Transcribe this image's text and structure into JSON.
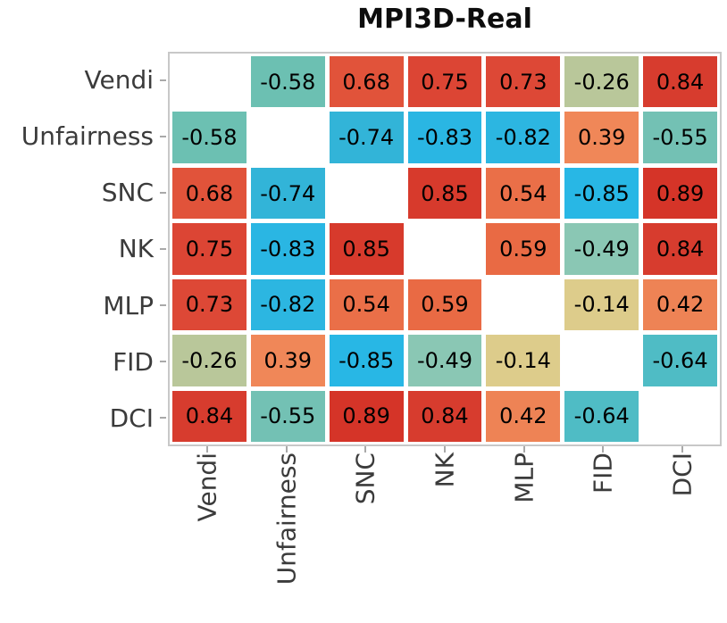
{
  "title": "MPI3D-Real",
  "chart_data": {
    "type": "heatmap",
    "title": "MPI3D-Real",
    "categories": [
      "Vendi",
      "Unfairness",
      "SNC",
      "NK",
      "MLP",
      "FID",
      "DCI"
    ],
    "matrix": [
      [
        null,
        -0.58,
        0.68,
        0.75,
        0.73,
        -0.26,
        0.84
      ],
      [
        -0.58,
        null,
        -0.74,
        -0.83,
        -0.82,
        0.39,
        -0.55
      ],
      [
        0.68,
        -0.74,
        null,
        0.85,
        0.54,
        -0.85,
        0.89
      ],
      [
        0.75,
        -0.83,
        0.85,
        null,
        0.59,
        -0.49,
        0.84
      ],
      [
        0.73,
        -0.82,
        0.54,
        0.59,
        null,
        -0.14,
        0.42
      ],
      [
        -0.26,
        0.39,
        -0.85,
        -0.49,
        -0.14,
        null,
        -0.64
      ],
      [
        0.84,
        -0.55,
        0.89,
        0.84,
        0.42,
        -0.64,
        null
      ]
    ],
    "diagonal_blank": true,
    "value_decimals": 2,
    "legend": "none",
    "value_colors": {
      "0.89": "#d53428",
      "0.85": "#d73a2c",
      "0.84": "#d73c2e",
      "0.75": "#dc4534",
      "0.73": "#dd4836",
      "0.68": "#e1533a",
      "0.59": "#e96a44",
      "0.54": "#ea6f48",
      "0.42": "#ee8355",
      "0.39": "#f08758",
      "-0.14": "#ddcc8b",
      "-0.26": "#b9c79a",
      "-0.49": "#8ac7b4",
      "-0.55": "#73c1b4",
      "-0.58": "#6cc0b2",
      "-0.64": "#4fbcc5",
      "-0.74": "#32b4d8",
      "-0.82": "#2cb6e1",
      "-0.83": "#2ab6e3",
      "-0.85": "#28b7e5"
    },
    "style_colors": {
      "cell_text": "#000000",
      "axis_label": "#3b3b3b",
      "tick": "#a9a9a9",
      "frame": "#c8c8c8",
      "background": "#ffffff"
    }
  }
}
